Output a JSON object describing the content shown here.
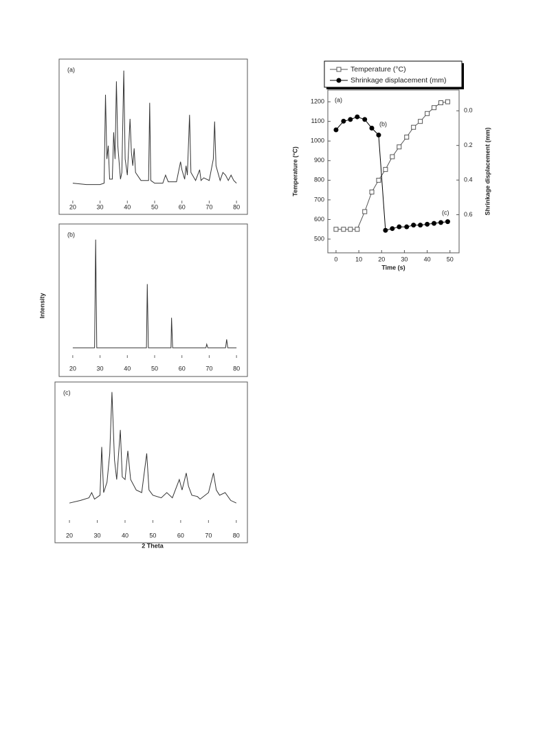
{
  "figure": {
    "y_label": "Intensity",
    "x_label": "2 Theta"
  },
  "chart_data": [
    {
      "type": "line",
      "label": "(a)",
      "color": "#333333",
      "x": [
        20,
        25,
        30,
        31.5,
        32,
        32.5,
        33,
        33.5,
        34.5,
        35,
        35.5,
        36,
        36.5,
        37.5,
        38,
        38.7,
        39.2,
        40,
        41,
        41.5,
        42,
        42.5,
        43,
        45,
        47,
        47.8,
        48.2,
        48.6,
        50,
        53,
        54,
        55,
        58,
        59.5,
        60,
        61,
        61.5,
        62,
        62.8,
        63.3,
        65,
        66.5,
        67,
        68,
        70,
        71.5,
        72,
        72.5,
        74,
        75,
        76,
        77,
        78,
        79,
        80
      ],
      "values": [
        12,
        11,
        11,
        12,
        78,
        30,
        40,
        15,
        15,
        50,
        30,
        88,
        40,
        15,
        20,
        96,
        30,
        18,
        60,
        35,
        25,
        38,
        20,
        14,
        14,
        14,
        72,
        14,
        12,
        12,
        18,
        13,
        13,
        28,
        22,
        15,
        25,
        18,
        63,
        20,
        14,
        22,
        14,
        16,
        14,
        30,
        58,
        25,
        14,
        20,
        18,
        14,
        18,
        14,
        12
      ],
      "xlim": [
        15,
        84
      ],
      "ylim": [
        0,
        100
      ],
      "xticks": [
        20,
        30,
        40,
        50,
        60,
        70,
        80
      ]
    },
    {
      "type": "line",
      "label": "(b)",
      "color": "#333333",
      "x": [
        20,
        28,
        28.4,
        28.8,
        47,
        47.3,
        47.7,
        56,
        56.2,
        56.6,
        68.8,
        69.1,
        69.5,
        76,
        76.4,
        76.8,
        80
      ],
      "values": [
        5,
        5,
        95,
        5,
        5,
        58,
        5,
        5,
        30,
        5,
        5,
        8,
        5,
        5,
        12,
        5,
        5
      ],
      "xlim": [
        15,
        84
      ],
      "ylim": [
        0,
        100
      ],
      "xticks": [
        20,
        30,
        40,
        50,
        60,
        70,
        80
      ]
    },
    {
      "type": "line",
      "label": "(c)",
      "color": "#333333",
      "x": [
        20,
        24,
        27,
        28,
        29,
        31,
        31.6,
        32.3,
        33.5,
        34.5,
        35.3,
        36.2,
        37,
        38.3,
        39,
        40,
        41,
        42,
        44,
        46,
        47.8,
        48.6,
        50,
        53,
        55,
        57,
        59.5,
        60.5,
        62,
        62.8,
        64,
        66,
        67,
        70,
        71.8,
        72.8,
        74,
        76,
        78,
        80
      ],
      "values": [
        12,
        14,
        16,
        20,
        15,
        18,
        55,
        20,
        28,
        50,
        97,
        45,
        30,
        68,
        32,
        30,
        52,
        30,
        22,
        20,
        50,
        22,
        18,
        16,
        20,
        16,
        30,
        22,
        35,
        25,
        18,
        17,
        15,
        20,
        35,
        22,
        18,
        20,
        14,
        12
      ],
      "xlim": [
        14.8,
        84
      ],
      "ylim": [
        0,
        100
      ],
      "xticks": [
        20,
        30,
        40,
        50,
        60,
        70,
        80
      ]
    },
    {
      "type": "line",
      "x_label": "Time (s)",
      "y_label": "Temperature (°C)",
      "y2_label": "Shrinkage displacement (mm)",
      "x": [
        0,
        3.3,
        6.3,
        9.3,
        12.6,
        15.7,
        18.7,
        21.7,
        24.7,
        27.7,
        31,
        34,
        37,
        40,
        43,
        46,
        49
      ],
      "series": [
        {
          "name": "Temperature (°C)",
          "color": "#555555",
          "marker": "square-open",
          "values": [
            550,
            550,
            550,
            550,
            640,
            740,
            800,
            855,
            920,
            970,
            1020,
            1070,
            1100,
            1140,
            1170,
            1195,
            1200
          ]
        },
        {
          "name": "Shrinkage displacement (mm)",
          "color": "#000000",
          "marker": "circle",
          "axis": "y2",
          "values": [
            0.11,
            0.06,
            0.05,
            0.035,
            0.05,
            0.1,
            0.14,
            0.69,
            0.68,
            0.67,
            0.67,
            0.66,
            0.66,
            0.655,
            0.65,
            0.645,
            0.64
          ]
        }
      ],
      "annotations": [
        "(a)",
        "(b)",
        "(c)"
      ],
      "xlim": [
        -3.6,
        54
      ],
      "ylim": [
        430,
        1260
      ],
      "y2lim": [
        0.82,
        -0.12
      ],
      "xticks": [
        0,
        10,
        20,
        30,
        40,
        50
      ],
      "yticks": [
        500,
        600,
        700,
        800,
        900,
        1000,
        1100,
        1200
      ],
      "y2ticks": [
        {
          "value": 0,
          "label": "0.0"
        },
        0.2,
        0.4,
        0.6
      ]
    }
  ]
}
